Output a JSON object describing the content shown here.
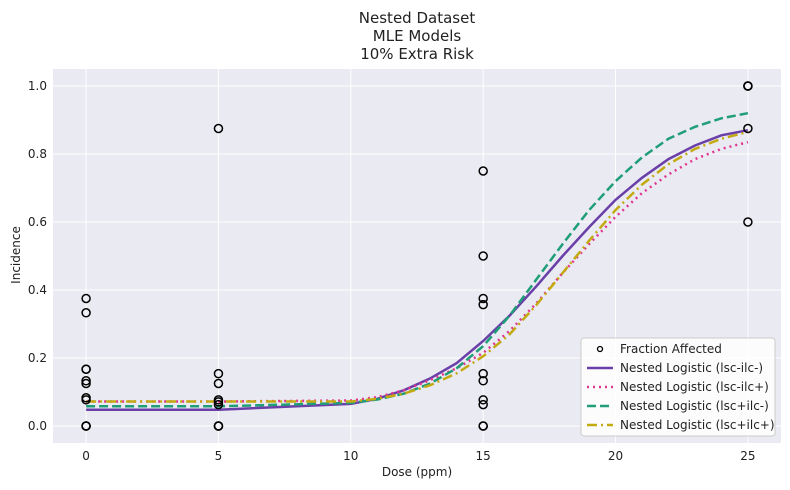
{
  "chart_data": {
    "type": "scatter",
    "title": [
      "Nested Dataset",
      "MLE Models",
      "10% Extra Risk"
    ],
    "xlabel": "Dose (ppm)",
    "ylabel": "Incidence",
    "xlim": [
      -1.25,
      26.25
    ],
    "ylim": [
      -0.05,
      1.05
    ],
    "xticks": [
      0,
      5,
      10,
      15,
      20,
      25
    ],
    "yticks": [
      0.0,
      0.2,
      0.4,
      0.6,
      0.8,
      1.0
    ],
    "xtick_labels": [
      "0",
      "5",
      "10",
      "15",
      "20",
      "25"
    ],
    "ytick_labels": [
      "0.0",
      "0.2",
      "0.4",
      "0.6",
      "0.8",
      "1.0"
    ],
    "grid": true,
    "legend_position": "lower-right",
    "scatter": {
      "name": "Fraction Affected",
      "points": [
        [
          0,
          0.375
        ],
        [
          0,
          0.333
        ],
        [
          0,
          0.167
        ],
        [
          0,
          0.167
        ],
        [
          0,
          0.133
        ],
        [
          0,
          0.125
        ],
        [
          0,
          0.083
        ],
        [
          0,
          0.077
        ],
        [
          0,
          0.0
        ],
        [
          0,
          0.0
        ],
        [
          0,
          0.0
        ],
        [
          5,
          0.875
        ],
        [
          5,
          0.154
        ],
        [
          5,
          0.125
        ],
        [
          5,
          0.077
        ],
        [
          5,
          0.071
        ],
        [
          5,
          0.063
        ],
        [
          5,
          0.0
        ],
        [
          5,
          0.0
        ],
        [
          5,
          0.0
        ],
        [
          15,
          0.75
        ],
        [
          15,
          0.5
        ],
        [
          15,
          0.375
        ],
        [
          15,
          0.357
        ],
        [
          15,
          0.154
        ],
        [
          15,
          0.133
        ],
        [
          15,
          0.077
        ],
        [
          15,
          0.063
        ],
        [
          15,
          0.0
        ],
        [
          15,
          0.0
        ],
        [
          25,
          1.0
        ],
        [
          25,
          1.0
        ],
        [
          25,
          1.0
        ],
        [
          25,
          0.875
        ],
        [
          25,
          0.6
        ]
      ]
    },
    "series": [
      {
        "name": "Nested Logistic (lsc-ilc-)",
        "color": "#6a3fa8",
        "dash": "solid",
        "x": [
          0,
          5,
          10,
          11,
          12,
          13,
          14,
          15,
          16,
          17,
          18,
          19,
          20,
          21,
          22,
          23,
          24,
          25
        ],
        "y": [
          0.048,
          0.048,
          0.065,
          0.08,
          0.105,
          0.14,
          0.185,
          0.25,
          0.325,
          0.41,
          0.5,
          0.585,
          0.665,
          0.73,
          0.785,
          0.825,
          0.855,
          0.87
        ]
      },
      {
        "name": "Nested Logistic (lsc-ilc+)",
        "color": "#e0368f",
        "dash": "dotted",
        "x": [
          0,
          5,
          10,
          11,
          12,
          13,
          14,
          15,
          16,
          17,
          18,
          19,
          20,
          21,
          22,
          23,
          24,
          25
        ],
        "y": [
          0.072,
          0.072,
          0.075,
          0.085,
          0.105,
          0.135,
          0.17,
          0.215,
          0.28,
          0.36,
          0.45,
          0.535,
          0.615,
          0.685,
          0.74,
          0.785,
          0.815,
          0.835
        ]
      },
      {
        "name": "Nested Logistic (lsc+ilc-)",
        "color": "#1f9e78",
        "dash": "dashed",
        "x": [
          0,
          5,
          10,
          11,
          12,
          13,
          14,
          15,
          16,
          17,
          18,
          19,
          20,
          21,
          22,
          23,
          24,
          25
        ],
        "y": [
          0.058,
          0.058,
          0.068,
          0.078,
          0.095,
          0.125,
          0.17,
          0.235,
          0.325,
          0.43,
          0.535,
          0.635,
          0.72,
          0.79,
          0.845,
          0.88,
          0.905,
          0.92
        ]
      },
      {
        "name": "Nested Logistic (lsc+ilc+)",
        "color": "#c2aa10",
        "dash": "dashdot",
        "x": [
          0,
          5,
          10,
          11,
          12,
          13,
          14,
          15,
          16,
          17,
          18,
          19,
          20,
          21,
          22,
          23,
          24,
          25
        ],
        "y": [
          0.072,
          0.072,
          0.072,
          0.08,
          0.095,
          0.12,
          0.155,
          0.205,
          0.27,
          0.355,
          0.45,
          0.545,
          0.635,
          0.71,
          0.77,
          0.815,
          0.845,
          0.865
        ]
      }
    ],
    "colors": {
      "plot_background": "#eaeaf2",
      "grid": "#ffffff",
      "marker_edge": "#000000"
    }
  }
}
